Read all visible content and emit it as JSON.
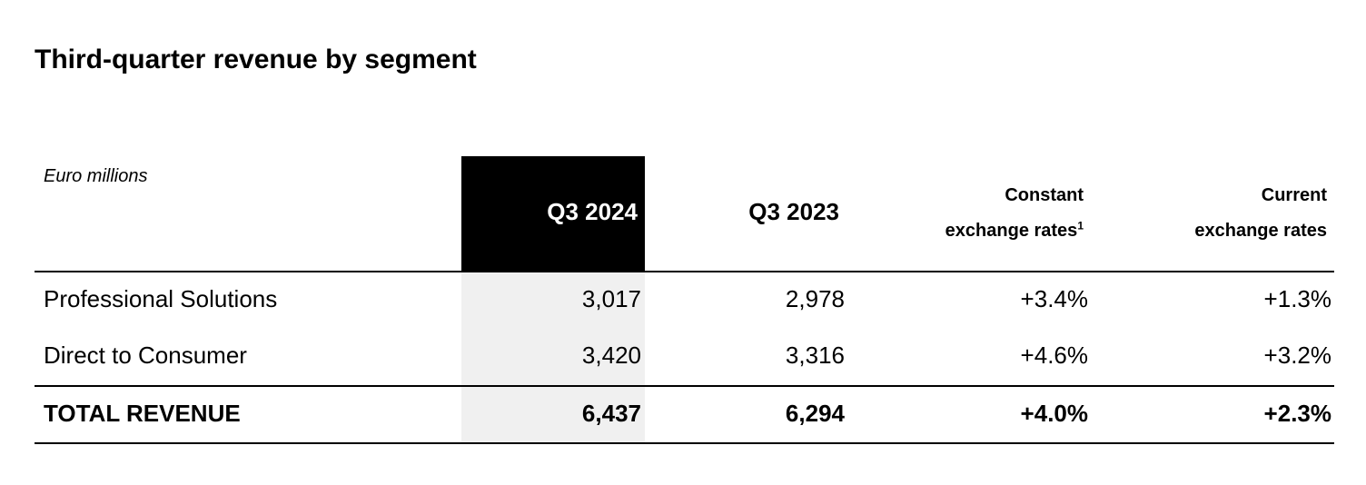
{
  "title": "Third-quarter revenue by segment",
  "table": {
    "unit_label": "Euro millions",
    "headers": {
      "q3_2024": "Q3 2024",
      "q3_2023": "Q3 2023",
      "constant_line1": "Constant",
      "constant_line2": "exchange rates",
      "constant_footnote": "1",
      "current_line1": "Current",
      "current_line2": "exchange rates"
    },
    "rows": [
      {
        "label": "Professional Solutions",
        "q3_2024": "3,017",
        "q3_2023": "2,978",
        "constant": "+3.4%",
        "current": "+1.3%"
      },
      {
        "label": "Direct to Consumer",
        "q3_2024": "3,420",
        "q3_2023": "3,316",
        "constant": "+4.6%",
        "current": "+3.2%"
      }
    ],
    "total": {
      "label": "TOTAL REVENUE",
      "q3_2024": "6,437",
      "q3_2023": "6,294",
      "constant": "+4.0%",
      "current": "+2.3%"
    }
  },
  "colors": {
    "highlight_header": "#000000",
    "highlight_column": "#f0f0f0",
    "text": "#000000"
  }
}
